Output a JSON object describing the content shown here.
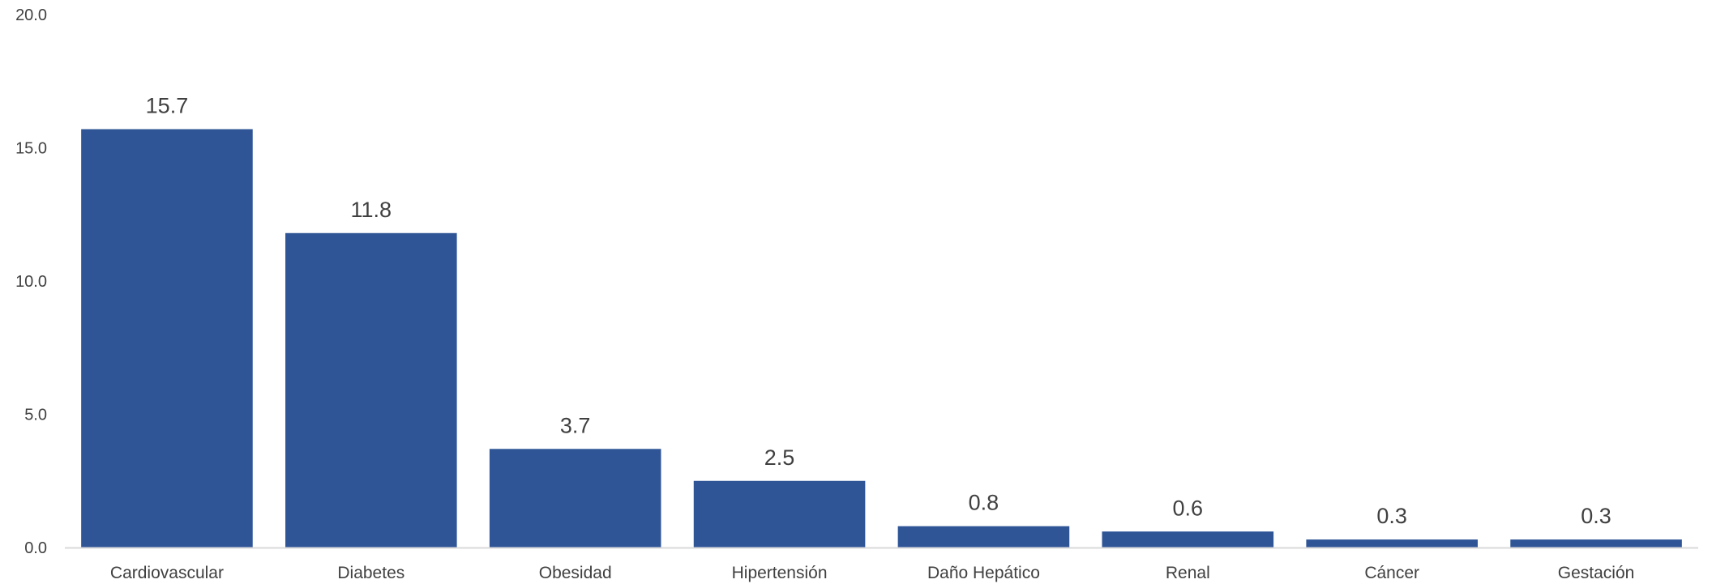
{
  "chart_data": {
    "type": "bar",
    "title": "",
    "xlabel": "",
    "ylabel": "",
    "categories": [
      "Cardiovascular",
      "Diabetes",
      "Obesidad",
      "Hipertensión",
      "Daño Hepático",
      "Renal",
      "Cáncer",
      "Gestación"
    ],
    "values": [
      15.7,
      11.8,
      3.7,
      2.5,
      0.8,
      0.6,
      0.3,
      0.3
    ],
    "value_labels": [
      "15.7",
      "11.8",
      "3.7",
      "2.5",
      "0.8",
      "0.6",
      "0.3",
      "0.3"
    ],
    "ylim": [
      0,
      20
    ],
    "yticks": [
      0,
      5,
      10,
      15,
      20
    ],
    "ytick_labels": [
      "0.0",
      "5.0",
      "10.0",
      "15.0",
      "20.0"
    ],
    "grid": false,
    "legend": "none",
    "colors": {
      "bar": "#2F5597",
      "axis_line": "#D9D9D9",
      "text": "#404040"
    }
  }
}
